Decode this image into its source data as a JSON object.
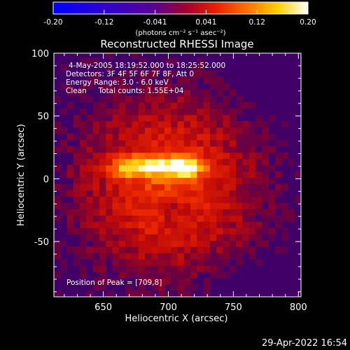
{
  "chart_data": {
    "type": "heatmap",
    "title": "Reconstructed RHESSI Image",
    "xlabel": "Heliocentric X (arcsec)",
    "ylabel": "Heliocentric Y (arcsec)",
    "xlim": [
      612,
      802
    ],
    "ylim": [
      -94,
      100
    ],
    "x_ticks": [
      650,
      700,
      750,
      800
    ],
    "y_ticks": [
      -50,
      0,
      50,
      100
    ],
    "colorbar": {
      "range": [
        -0.2,
        0.2
      ],
      "tick_labels": [
        "-0.20",
        "-0.12",
        "-0.041",
        "0.041",
        "0.12",
        "0.20"
      ],
      "unit_label": "(photons cm⁻² s⁻¹ asec⁻²)"
    },
    "annotations": [
      "4-May-2005 18:19:52.000 to 18:25:52.000",
      "Detectors: 3F 4F 5F 6F 7F 8F, Att 0",
      "Energy Range: 3.0 - 6.0 keV",
      "Clean     Total counts: 1.55E+04"
    ],
    "peak_label": "Position of Peak = [709,8]",
    "peak_position": [
      709,
      8
    ],
    "footer_timestamp": "29-Apr-2022 16:54",
    "colors": {
      "background": "#000000",
      "text": "#ffffff",
      "cold": "#0000ff",
      "hot": "#ffffff"
    }
  }
}
